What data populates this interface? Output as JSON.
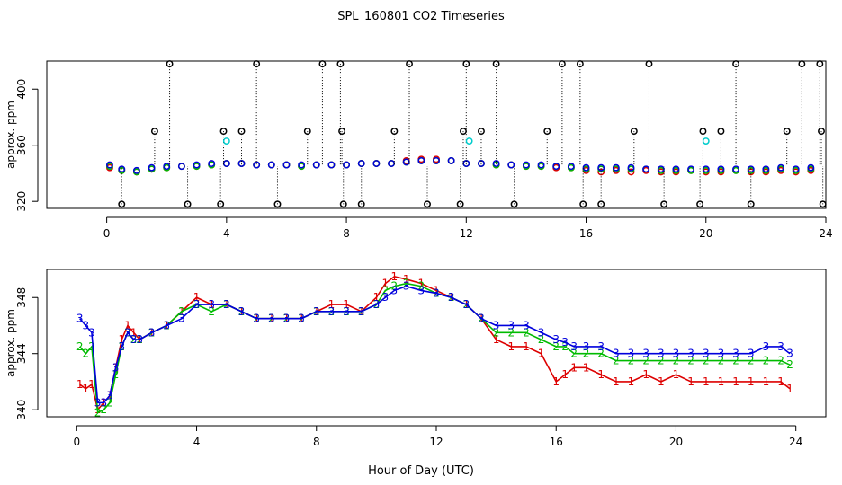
{
  "chart_data": {
    "title": "SPL_160801  CO2 Timeseries",
    "xlabel": "Hour of Day (UTC)",
    "colors": {
      "1": "#dd0000",
      "2": "#00bb00",
      "3": "#0000dd",
      "flag": "#000000",
      "cal": "#00cccc"
    },
    "panels": [
      {
        "id": "top",
        "type": "scatter",
        "ylabel": "approx. ppm",
        "xlim": [
          -2,
          24
        ],
        "ylim": [
          315,
          420
        ],
        "xticks": [
          0,
          4,
          8,
          12,
          16,
          20,
          24
        ],
        "xtick_labels": [
          "0",
          "4",
          "8",
          "12",
          "16",
          "20",
          "24"
        ],
        "yticks": [
          320,
          360,
          400
        ],
        "ytick_labels": [
          "320",
          "360",
          "400"
        ],
        "series": [
          {
            "name": "1",
            "marker": "circle",
            "x": [
              0.1,
              0.5,
              1.0,
              1.5,
              2.0,
              2.5,
              3.0,
              3.5,
              4.0,
              4.5,
              5.0,
              5.5,
              6.0,
              6.5,
              7.0,
              7.5,
              8.0,
              8.5,
              9.0,
              9.5,
              10.0,
              10.5,
              11.0,
              11.5,
              12.0,
              12.5,
              13.0,
              13.5,
              14.0,
              14.5,
              15.0,
              15.5,
              16.0,
              16.5,
              17.0,
              17.5,
              18.0,
              18.5,
              19.0,
              19.5,
              20.0,
              20.5,
              21.0,
              21.5,
              22.0,
              22.5,
              23.0,
              23.5
            ],
            "y": [
              344,
              342,
              341,
              343,
              344,
              345,
              345,
              346,
              347,
              347,
              346,
              346,
              346,
              345,
              346,
              346,
              346,
              347,
              347,
              347,
              349,
              350,
              350,
              349,
              347,
              347,
              346,
              346,
              345,
              345,
              344,
              344,
              342,
              341,
              342,
              341,
              342,
              341,
              341,
              342,
              341,
              341,
              342,
              341,
              341,
              342,
              341,
              342
            ]
          },
          {
            "name": "2",
            "marker": "circle",
            "x": [
              0.1,
              0.5,
              1.0,
              1.5,
              2.0,
              2.5,
              3.0,
              3.5,
              4.0,
              4.5,
              5.0,
              5.5,
              6.0,
              6.5,
              7.0,
              7.5,
              8.0,
              8.5,
              9.0,
              9.5,
              10.0,
              10.5,
              11.0,
              11.5,
              12.0,
              12.5,
              13.0,
              13.5,
              14.0,
              14.5,
              15.0,
              15.5,
              16.0,
              16.5,
              17.0,
              17.5,
              18.0,
              18.5,
              19.0,
              19.5,
              20.0,
              20.5,
              21.0,
              21.5,
              22.0,
              22.5,
              23.0,
              23.5
            ],
            "y": [
              345,
              342,
              341,
              343,
              344,
              345,
              345,
              346,
              347,
              347,
              346,
              346,
              346,
              345,
              346,
              346,
              346,
              347,
              347,
              347,
              348,
              349,
              349,
              349,
              347,
              347,
              346,
              346,
              345,
              345,
              345,
              344,
              343,
              343,
              343,
              343,
              343,
              342,
              342,
              342,
              342,
              342,
              342,
              342,
              342,
              343,
              342,
              343
            ]
          },
          {
            "name": "3",
            "marker": "circle",
            "x": [
              0.1,
              0.5,
              1.0,
              1.5,
              2.0,
              2.5,
              3.0,
              3.5,
              4.0,
              4.5,
              5.0,
              5.5,
              6.0,
              6.5,
              7.0,
              7.5,
              8.0,
              8.5,
              9.0,
              9.5,
              10.0,
              10.5,
              11.0,
              11.5,
              12.0,
              12.5,
              13.0,
              13.5,
              14.0,
              14.5,
              15.0,
              15.5,
              16.0,
              16.5,
              17.0,
              17.5,
              18.0,
              18.5,
              19.0,
              19.5,
              20.0,
              20.5,
              21.0,
              21.5,
              22.0,
              22.5,
              23.0,
              23.5
            ],
            "y": [
              346,
              343,
              342,
              344,
              345,
              345,
              346,
              347,
              347,
              347,
              346,
              346,
              346,
              346,
              346,
              346,
              346,
              347,
              347,
              347,
              348,
              349,
              349,
              349,
              347,
              347,
              347,
              346,
              346,
              346,
              345,
              345,
              344,
              344,
              344,
              344,
              343,
              343,
              343,
              343,
              343,
              343,
              343,
              343,
              343,
              344,
              343,
              344
            ]
          },
          {
            "name": "flag",
            "marker": "circle",
            "x": [
              0.5,
              1.6,
              2.1,
              2.7,
              3.8,
              3.9,
              4.5,
              5.0,
              5.7,
              6.7,
              7.2,
              7.8,
              7.85,
              7.9,
              8.5,
              9.6,
              10.1,
              10.7,
              11.8,
              11.9,
              12.0,
              12.5,
              13.0,
              13.6,
              14.7,
              15.2,
              15.8,
              15.9,
              16.5,
              17.6,
              18.1,
              18.6,
              19.8,
              19.9,
              20.5,
              21.0,
              21.5,
              22.7,
              23.2,
              23.8,
              23.85,
              23.9
            ],
            "y": [
              318,
              370,
              418,
              318,
              318,
              370,
              370,
              418,
              318,
              370,
              418,
              418,
              370,
              318,
              318,
              370,
              418,
              318,
              318,
              370,
              418,
              370,
              418,
              318,
              370,
              418,
              418,
              318,
              318,
              370,
              418,
              318,
              318,
              370,
              370,
              418,
              318,
              370,
              418,
              418,
              370,
              318
            ]
          },
          {
            "name": "cal",
            "marker": "circle",
            "x": [
              4.0,
              12.1,
              20.0
            ],
            "y": [
              363,
              363,
              363
            ]
          }
        ]
      },
      {
        "id": "bottom",
        "type": "scatter",
        "ylabel": "approx. ppm",
        "xlim": [
          -1,
          25
        ],
        "ylim": [
          339.5,
          350
        ],
        "xticks": [
          0,
          4,
          8,
          12,
          16,
          20,
          24
        ],
        "xtick_labels": [
          "0",
          "4",
          "8",
          "12",
          "16",
          "20",
          "24"
        ],
        "yticks": [
          340,
          344,
          348
        ],
        "ytick_labels": [
          "340",
          "344",
          "348"
        ],
        "series": [
          {
            "name": "1",
            "marker": "text",
            "label": "1",
            "x": [
              0.1,
              0.3,
              0.5,
              0.7,
              0.9,
              1.1,
              1.3,
              1.5,
              1.7,
              1.9,
              2.1,
              2.5,
              3.0,
              3.5,
              4.0,
              4.5,
              5.0,
              5.5,
              6.0,
              6.5,
              7.0,
              7.5,
              8.0,
              8.5,
              9.0,
              9.5,
              10.0,
              10.3,
              10.6,
              11.0,
              11.5,
              12.0,
              12.5,
              13.0,
              13.5,
              14.0,
              14.5,
              15.0,
              15.5,
              16.0,
              16.3,
              16.6,
              17.0,
              17.5,
              18.0,
              18.5,
              19.0,
              19.5,
              20.0,
              20.5,
              21.0,
              21.5,
              22.0,
              22.5,
              23.0,
              23.5,
              23.8
            ],
            "y": [
              341.8,
              341.5,
              341.8,
              340.0,
              340.5,
              341.0,
              343.0,
              345.0,
              346.0,
              345.5,
              345.0,
              345.5,
              346.0,
              347.0,
              348.0,
              347.5,
              347.5,
              347.0,
              346.5,
              346.5,
              346.5,
              346.5,
              347.0,
              347.5,
              347.5,
              347.0,
              348.0,
              349.0,
              349.5,
              349.3,
              349.0,
              348.5,
              348.0,
              347.5,
              346.5,
              345.0,
              344.5,
              344.5,
              344.0,
              342.0,
              342.5,
              343.0,
              343.0,
              342.5,
              342.0,
              342.0,
              342.5,
              342.0,
              342.5,
              342.0,
              342.0,
              342.0,
              342.0,
              342.0,
              342.0,
              342.0,
              341.5
            ]
          },
          {
            "name": "2",
            "marker": "text",
            "label": "2",
            "x": [
              0.1,
              0.3,
              0.5,
              0.7,
              0.9,
              1.1,
              1.3,
              1.5,
              1.7,
              1.9,
              2.1,
              2.5,
              3.0,
              3.5,
              4.0,
              4.5,
              5.0,
              5.5,
              6.0,
              6.5,
              7.0,
              7.5,
              8.0,
              8.5,
              9.0,
              9.5,
              10.0,
              10.3,
              10.6,
              11.0,
              11.5,
              12.0,
              12.5,
              13.0,
              13.5,
              14.0,
              14.5,
              15.0,
              15.5,
              16.0,
              16.3,
              16.6,
              17.0,
              17.5,
              18.0,
              18.5,
              19.0,
              19.5,
              20.0,
              20.5,
              21.0,
              21.5,
              22.0,
              22.5,
              23.0,
              23.5,
              23.8
            ],
            "y": [
              344.5,
              344.0,
              344.5,
              339.8,
              340.0,
              340.5,
              342.5,
              344.5,
              345.5,
              345.0,
              345.0,
              345.5,
              346.0,
              347.0,
              347.5,
              347.0,
              347.5,
              347.0,
              346.5,
              346.5,
              346.5,
              346.5,
              347.0,
              347.0,
              347.0,
              347.0,
              347.5,
              348.5,
              348.8,
              349.0,
              348.8,
              348.3,
              348.0,
              347.5,
              346.5,
              345.5,
              345.5,
              345.5,
              345.0,
              344.5,
              344.5,
              344.0,
              344.0,
              344.0,
              343.5,
              343.5,
              343.5,
              343.5,
              343.5,
              343.5,
              343.5,
              343.5,
              343.5,
              343.5,
              343.5,
              343.5,
              343.2
            ]
          },
          {
            "name": "3",
            "marker": "text",
            "label": "3",
            "x": [
              0.1,
              0.3,
              0.5,
              0.7,
              0.9,
              1.1,
              1.3,
              1.5,
              1.7,
              1.9,
              2.1,
              2.5,
              3.0,
              3.5,
              4.0,
              4.5,
              5.0,
              5.5,
              6.0,
              6.5,
              7.0,
              7.5,
              8.0,
              8.5,
              9.0,
              9.5,
              10.0,
              10.3,
              10.6,
              11.0,
              11.5,
              12.0,
              12.5,
              13.0,
              13.5,
              14.0,
              14.5,
              15.0,
              15.5,
              16.0,
              16.3,
              16.6,
              17.0,
              17.5,
              18.0,
              18.5,
              19.0,
              19.5,
              20.0,
              20.5,
              21.0,
              21.5,
              22.0,
              22.5,
              23.0,
              23.5,
              23.8
            ],
            "y": [
              346.5,
              346.0,
              345.5,
              340.5,
              340.5,
              341.0,
              343.0,
              344.5,
              345.5,
              345.0,
              345.0,
              345.5,
              346.0,
              346.5,
              347.5,
              347.5,
              347.5,
              347.0,
              346.5,
              346.5,
              346.5,
              346.5,
              347.0,
              347.0,
              347.0,
              347.0,
              347.5,
              348.0,
              348.5,
              348.8,
              348.5,
              348.3,
              348.0,
              347.5,
              346.5,
              346.0,
              346.0,
              346.0,
              345.5,
              345.0,
              344.8,
              344.5,
              344.5,
              344.5,
              344.0,
              344.0,
              344.0,
              344.0,
              344.0,
              344.0,
              344.0,
              344.0,
              344.0,
              344.0,
              344.5,
              344.5,
              344.0
            ]
          }
        ]
      }
    ]
  }
}
